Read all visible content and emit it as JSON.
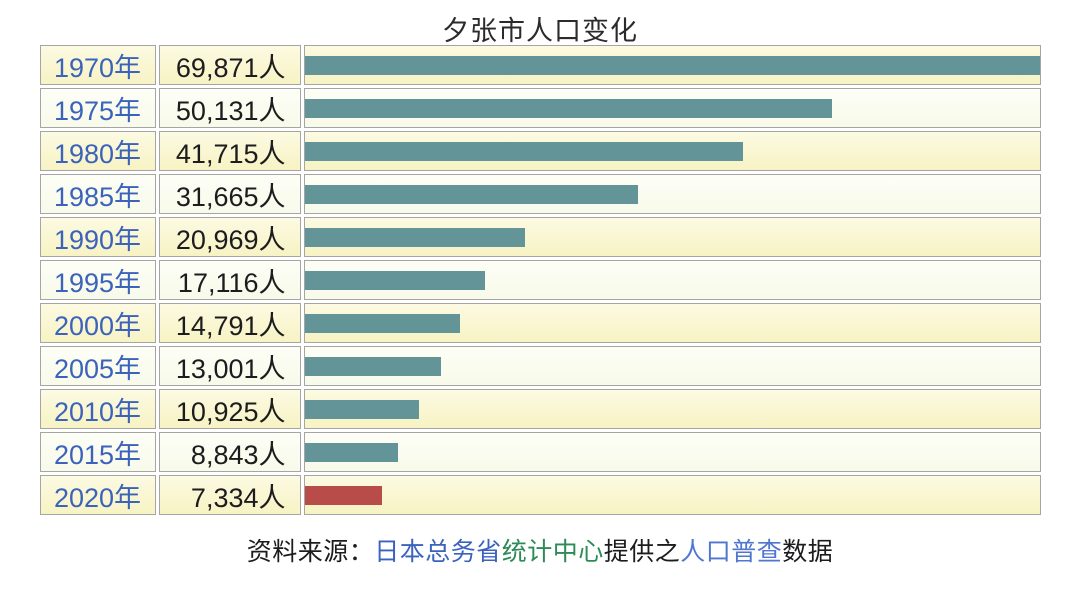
{
  "title": "夕张市人口变化",
  "chart_data": {
    "type": "bar",
    "orientation": "horizontal",
    "title": "夕张市人口变化",
    "categories": [
      "1970年",
      "1975年",
      "1980年",
      "1985年",
      "1990年",
      "1995年",
      "2000年",
      "2005年",
      "2010年",
      "2015年",
      "2020年"
    ],
    "values": [
      69871,
      50131,
      41715,
      31665,
      20969,
      17116,
      14791,
      13001,
      10925,
      8843,
      7334
    ],
    "value_labels": [
      "69,871人",
      "50,131人",
      "41,715人",
      "31,665人",
      "20,969人",
      "17,116人",
      "14,791人",
      "13,001人",
      "10,925人",
      "8,843人",
      "7,334人"
    ],
    "unit": "人",
    "xlim": [
      0,
      69871
    ],
    "grid": "off",
    "legend": "none",
    "bar_color": "#639598",
    "highlight_index": 10,
    "highlight_color": "#b84c48",
    "year_label_color": "#3c63bc",
    "row_color_odd": "#f8f4c8",
    "row_color_even": "#fbfcef"
  },
  "source_note": {
    "segments": [
      {
        "text": "资料来源：",
        "color": "#1c1c1e",
        "link": false
      },
      {
        "text": "日本总务省",
        "color": "#3b63be",
        "link": true
      },
      {
        "text": "统计中心",
        "color": "#2e8b57",
        "link": true
      },
      {
        "text": "提供之",
        "color": "#1c1c1e",
        "link": false
      },
      {
        "text": "人口普查",
        "color": "#5077d0",
        "link": true
      },
      {
        "text": "数据",
        "color": "#1c1c1e",
        "link": false
      }
    ]
  }
}
